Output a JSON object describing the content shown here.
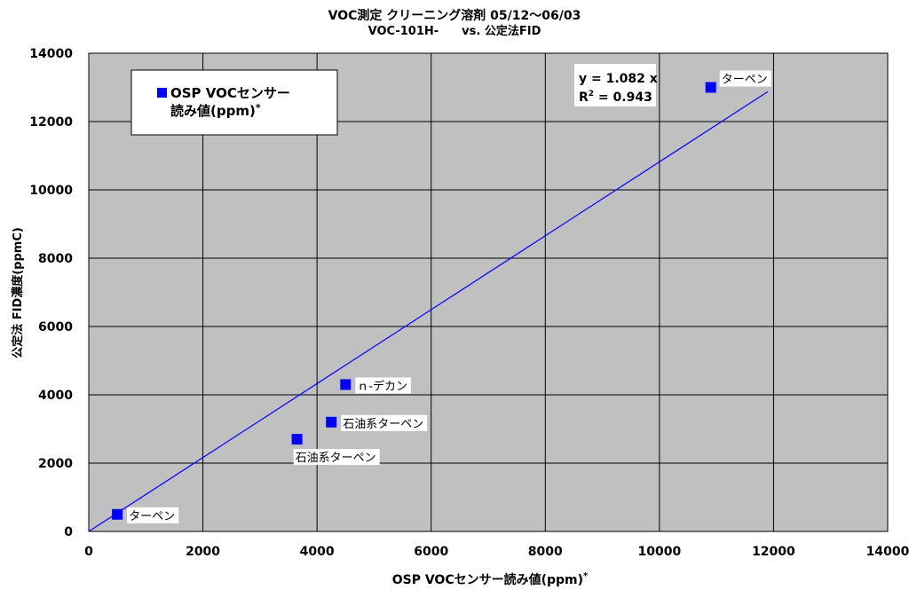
{
  "chart_data": {
    "type": "scatter",
    "title": "VOC測定 クリーニング溶剤 05/12～06/03",
    "subtitle": "VOC-101H-　　vs. 公定法FID",
    "xlabel": "OSP VOCセンサー読み値(ppm)",
    "xlabel_mark": "*",
    "ylabel": "公定法 FID濃度(ppmC)",
    "xlim": [
      0,
      14000
    ],
    "ylim": [
      0,
      14000
    ],
    "xticks": [
      0,
      2000,
      4000,
      6000,
      8000,
      10000,
      12000,
      14000
    ],
    "yticks": [
      0,
      2000,
      4000,
      6000,
      8000,
      10000,
      12000,
      14000
    ],
    "grid": true,
    "plot_background": "#c0c0c0",
    "marker_color": "#0000ff",
    "legend": {
      "placement": "top-left",
      "line1": "OSP VOCセンサー",
      "line2": "読み値(ppm)",
      "mark": "*"
    },
    "series": [
      {
        "name": "OSP VOCセンサー読み値(ppm)*",
        "points": [
          {
            "x": 500,
            "y": 500,
            "label": "ターペン"
          },
          {
            "x": 3650,
            "y": 2700,
            "label": "石油系ターペン"
          },
          {
            "x": 4250,
            "y": 3200,
            "label": "石油系ターペン"
          },
          {
            "x": 4500,
            "y": 4300,
            "label": "ｎ-デカン"
          },
          {
            "x": 10900,
            "y": 13000,
            "label": "ターペン"
          }
        ]
      }
    ],
    "trendline": {
      "slope": 1.082,
      "x_range": [
        0,
        11900
      ],
      "color": "#0000ff",
      "equation": "y = 1.082 x",
      "r2_prefix": "R",
      "r2_sup": "2",
      "r2_value": " = 0.943"
    }
  }
}
